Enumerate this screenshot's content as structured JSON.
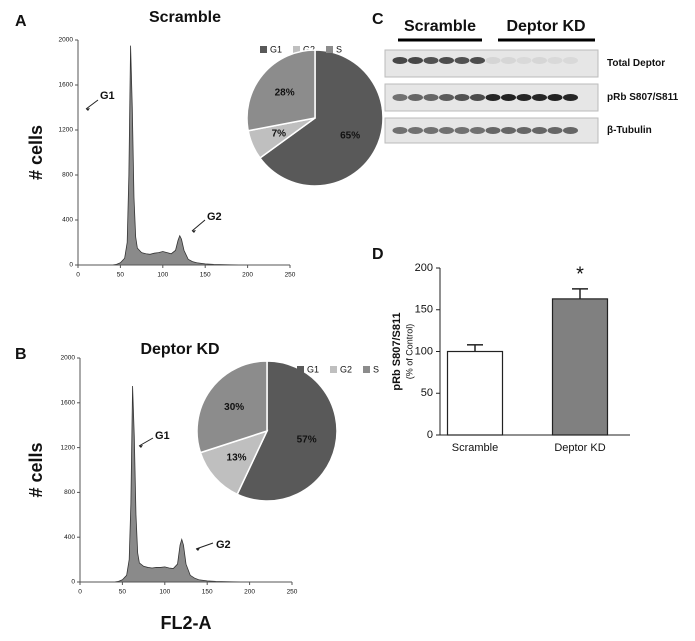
{
  "panels": [
    "A",
    "B",
    "C",
    "D"
  ],
  "blot": {
    "groups": [
      "Scramble",
      "Deptor KD"
    ],
    "rows": [
      "Total Deptor",
      "pRb S807/S811",
      "β-Tubulin"
    ]
  },
  "chart_data": [
    {
      "type": "area",
      "title": "Scramble",
      "y_label": "# cells",
      "x": [
        40,
        45,
        50,
        55,
        58,
        60,
        62,
        64,
        66,
        68,
        70,
        75,
        80,
        85,
        90,
        95,
        100,
        105,
        110,
        115,
        118,
        120,
        122,
        125,
        130,
        135,
        140,
        150,
        160,
        180,
        200
      ],
      "values": [
        0,
        5,
        20,
        60,
        200,
        800,
        1950,
        1400,
        600,
        250,
        150,
        110,
        100,
        95,
        105,
        110,
        120,
        110,
        100,
        130,
        220,
        260,
        230,
        130,
        50,
        30,
        20,
        10,
        5,
        2,
        0
      ],
      "color": "#8a8a8a",
      "xlim": [
        0,
        250
      ],
      "xticks": [
        0,
        50,
        100,
        150,
        200,
        250
      ],
      "ylim": [
        0,
        2000
      ],
      "yticks": [
        0,
        400,
        800,
        1200,
        1600,
        2000
      ],
      "annotations": [
        "G1",
        "G2"
      ]
    },
    {
      "type": "pie",
      "categories": [
        "G1",
        "G2",
        "S"
      ],
      "values": [
        65,
        7,
        28
      ],
      "value_labels": [
        "65%",
        "7%",
        "28%"
      ],
      "colors": [
        "#595959",
        "#bfbfbf",
        "#8c8c8c"
      ],
      "legend": "top"
    },
    {
      "type": "area",
      "title": "Deptor KD",
      "y_label": "# cells",
      "x_label": "FL2-A",
      "x": [
        40,
        45,
        50,
        55,
        58,
        60,
        62,
        64,
        66,
        68,
        70,
        75,
        80,
        85,
        90,
        95,
        100,
        105,
        110,
        115,
        118,
        120,
        122,
        125,
        130,
        135,
        140,
        150,
        160,
        180,
        200
      ],
      "values": [
        0,
        5,
        20,
        60,
        200,
        700,
        1750,
        1300,
        600,
        260,
        170,
        140,
        130,
        125,
        130,
        130,
        135,
        125,
        120,
        160,
        330,
        380,
        330,
        160,
        60,
        35,
        20,
        10,
        5,
        2,
        0
      ],
      "color": "#8a8a8a",
      "xlim": [
        0,
        250
      ],
      "xticks": [
        0,
        50,
        100,
        150,
        200,
        250
      ],
      "ylim": [
        0,
        2000
      ],
      "yticks": [
        0,
        400,
        800,
        1200,
        1600,
        2000
      ],
      "annotations": [
        "G1",
        "G2"
      ]
    },
    {
      "type": "pie",
      "categories": [
        "G1",
        "G2",
        "S"
      ],
      "values": [
        57,
        13,
        30
      ],
      "value_labels": [
        "57%",
        "13%",
        "30%"
      ],
      "colors": [
        "#595959",
        "#bfbfbf",
        "#8c8c8c"
      ],
      "legend": "top"
    },
    {
      "type": "bar",
      "y_label": "pRb S807/S811",
      "y_label_note": "(% of Control)",
      "categories": [
        "Scramble",
        "Deptor KD"
      ],
      "values": [
        100,
        163
      ],
      "errors": [
        8,
        12
      ],
      "colors": [
        "#ffffff",
        "#808080"
      ],
      "ylim": [
        0,
        200
      ],
      "yticks": [
        0,
        50,
        100,
        150,
        200
      ],
      "annotations": [
        "*"
      ]
    }
  ]
}
